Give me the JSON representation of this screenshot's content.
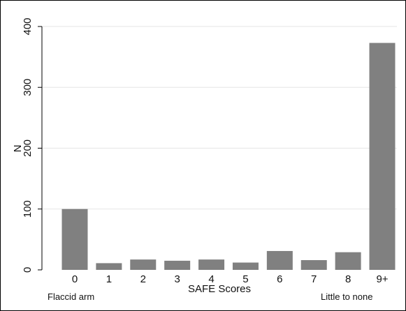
{
  "chart_data": {
    "type": "bar",
    "categories": [
      "0",
      "1",
      "2",
      "3",
      "4",
      "5",
      "6",
      "7",
      "8",
      "9+"
    ],
    "values": [
      100,
      11,
      17,
      15,
      17,
      12,
      31,
      16,
      29,
      373
    ],
    "xlabel": "SAFE Scores",
    "ylabel": "N",
    "ylim": [
      0,
      400
    ],
    "yticks": [
      0,
      100,
      200,
      300,
      400
    ],
    "grid": true,
    "bar_color": "#808080",
    "annotations": {
      "left": "Flaccid arm",
      "right": "Little to none"
    }
  }
}
